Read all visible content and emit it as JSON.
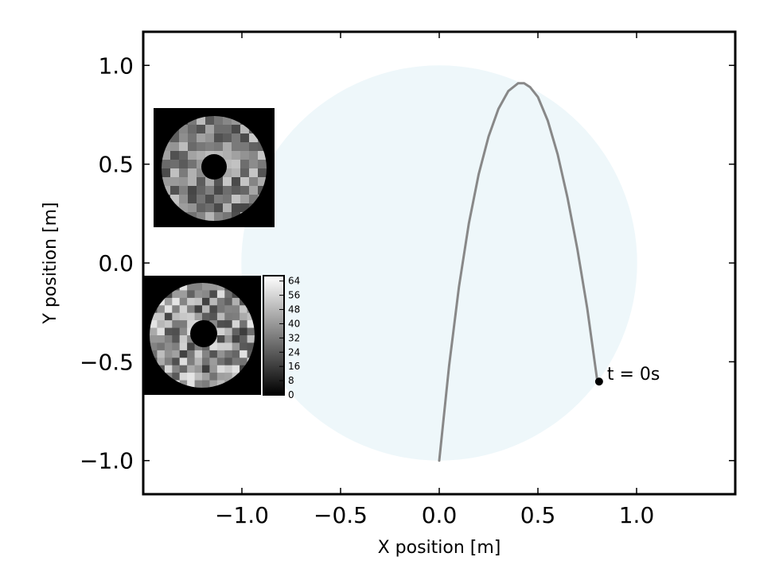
{
  "chart_data": {
    "type": "line",
    "title": "",
    "xlabel": "X position [m]",
    "ylabel": "Y position [m]",
    "xlim": [
      -1.5,
      1.5
    ],
    "ylim": [
      -1.17,
      1.17
    ],
    "x_ticks": [
      -1.0,
      -0.5,
      0.0,
      0.5,
      1.0
    ],
    "x_tick_labels": [
      "−1.0",
      "−0.5",
      "0.0",
      "0.5",
      "1.0"
    ],
    "y_ticks": [
      1.0,
      0.5,
      0.0,
      -0.5,
      -1.0
    ],
    "y_tick_labels": [
      "1.0",
      "0.5",
      "0.0",
      "−0.5",
      "−1.0"
    ],
    "grid": false,
    "boundary_circle": {
      "center": [
        0.0,
        0.0
      ],
      "radius": 1.0,
      "color": "#eef7fa"
    },
    "trajectory": {
      "color": "#888888",
      "x": [
        0.0,
        0.05,
        0.1,
        0.15,
        0.2,
        0.25,
        0.3,
        0.35,
        0.4,
        0.43,
        0.46,
        0.5,
        0.55,
        0.6,
        0.65,
        0.7,
        0.75,
        0.8
      ],
      "y": [
        -1.0,
        -0.52,
        -0.12,
        0.2,
        0.45,
        0.64,
        0.78,
        0.87,
        0.91,
        0.91,
        0.89,
        0.84,
        0.72,
        0.55,
        0.33,
        0.07,
        -0.23,
        -0.59
      ]
    },
    "current_point": {
      "x": 0.81,
      "y": -0.6,
      "label": "t =  0s",
      "color": "#000000"
    },
    "insets": [
      {
        "name": "upper-image-inset",
        "colormap": "gray"
      },
      {
        "name": "lower-image-inset",
        "colormap": "gray"
      }
    ],
    "colorbar": {
      "range": [
        0,
        67
      ],
      "ticks": [
        0,
        8,
        16,
        24,
        32,
        40,
        48,
        56,
        64
      ],
      "tick_labels": [
        "0",
        "8",
        "16",
        "24",
        "32",
        "40",
        "48",
        "56",
        "64"
      ],
      "colormap": "gray"
    }
  }
}
